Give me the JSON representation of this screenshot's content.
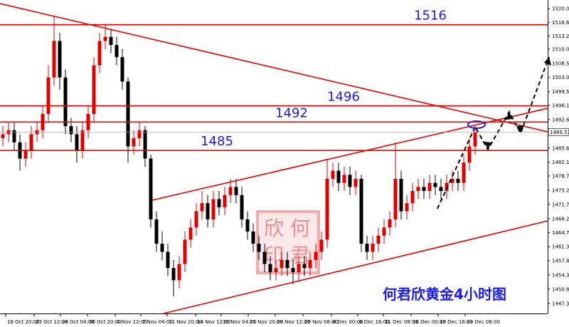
{
  "chart_data": {
    "type": "candlestick",
    "ylim": [
      1444.8,
      1522.1
    ],
    "yticks": [
      {
        "value": 1520,
        "label": "1520.00"
      },
      {
        "value": 1516.6,
        "label": "1516.60"
      },
      {
        "value": 1513.2,
        "label": "1513.20"
      },
      {
        "value": 1510,
        "label": "1510.00"
      },
      {
        "value": 1506.5,
        "label": "1506.50"
      },
      {
        "value": 1503,
        "label": "1503.00"
      },
      {
        "value": 1499.5,
        "label": "1499.50"
      },
      {
        "value": 1496.1,
        "label": "1496.10"
      },
      {
        "value": 1492.6,
        "label": "1492.60"
      },
      {
        "value": 1485.6,
        "label": "1485.60"
      },
      {
        "value": 1482.1,
        "label": "1482.10"
      },
      {
        "value": 1478.7,
        "label": "1478.70"
      },
      {
        "value": 1475.2,
        "label": "1475.20"
      },
      {
        "value": 1471.7,
        "label": "1471.70"
      },
      {
        "value": 1468.2,
        "label": "1468.20"
      },
      {
        "value": 1464.7,
        "label": "1464.70"
      },
      {
        "value": 1461.3,
        "label": "1461.30"
      },
      {
        "value": 1457.8,
        "label": "1457.80"
      },
      {
        "value": 1454.3,
        "label": "1454.30"
      },
      {
        "value": 1450.8,
        "label": "1450.80"
      },
      {
        "value": 1447.3,
        "label": "1447.30"
      }
    ],
    "xtick_labels": [
      "18 Oct 20:00",
      "23 Oct 12:00",
      "28 Oct 04:00",
      "30 Oct 20:00",
      "4 Nov 12:00",
      "7 Nov 04:00",
      "11 Nov 20:00",
      "14 Nov 12:00",
      "19 Nov 04:00",
      "21 Nov 20:00",
      "26 Nov 12:00",
      "29 Nov 08:00",
      "4 Dec 00:00",
      "6 Dec 16:00",
      "11 Dec 08:00",
      "16 Dec 00:00",
      "18 Dec 16:00",
      "23 Dec 08:00"
    ],
    "up_color": "#e00000",
    "down_color": "#000000",
    "open": [
      1488,
      1489,
      1490,
      1487,
      1483,
      1485,
      1489,
      1490,
      1494,
      1503,
      1512,
      1503,
      1491,
      1489,
      1485,
      1490,
      1494,
      1506,
      1512,
      1513,
      1511,
      1508,
      1502,
      1486,
      1488,
      1490,
      1483,
      1468,
      1462,
      1460,
      1456,
      1453,
      1457,
      1463,
      1466,
      1470,
      1472,
      1468,
      1473,
      1471,
      1474,
      1476,
      1474,
      1468,
      1465,
      1462,
      1460,
      1457,
      1455,
      1456,
      1458,
      1456,
      1455,
      1457,
      1456,
      1458,
      1460,
      1463,
      1478,
      1480,
      1477,
      1479,
      1476,
      1478,
      1462,
      1460,
      1462,
      1464,
      1466,
      1468,
      1478,
      1470,
      1472,
      1475,
      1476,
      1475,
      1477,
      1476,
      1475,
      1477,
      1478,
      1477,
      1482,
      1486
    ],
    "high": [
      1491,
      1492,
      1492,
      1489,
      1487,
      1491,
      1492,
      1496,
      1506,
      1518,
      1514,
      1505,
      1493,
      1491,
      1492,
      1496,
      1508,
      1514,
      1516,
      1515,
      1513,
      1510,
      1503,
      1490,
      1492,
      1491,
      1484,
      1470,
      1465,
      1462,
      1458,
      1459,
      1465,
      1468,
      1472,
      1475,
      1474,
      1475,
      1475,
      1476,
      1478,
      1478,
      1476,
      1470,
      1467,
      1464,
      1462,
      1459,
      1458,
      1460,
      1460,
      1458,
      1459,
      1459,
      1460,
      1462,
      1465,
      1483,
      1482,
      1482,
      1481,
      1481,
      1480,
      1479,
      1464,
      1464,
      1466,
      1468,
      1470,
      1487,
      1480,
      1474,
      1477,
      1478,
      1478,
      1479,
      1479,
      1478,
      1479,
      1480,
      1480,
      1484,
      1488,
      1491
    ],
    "low": [
      1486,
      1487,
      1485,
      1480,
      1481,
      1483,
      1487,
      1488,
      1492,
      1501,
      1500,
      1489,
      1487,
      1482,
      1483,
      1488,
      1492,
      1504,
      1510,
      1509,
      1506,
      1500,
      1482,
      1484,
      1486,
      1481,
      1466,
      1460,
      1458,
      1454,
      1449,
      1451,
      1455,
      1461,
      1464,
      1468,
      1466,
      1466,
      1469,
      1469,
      1472,
      1472,
      1466,
      1463,
      1460,
      1458,
      1455,
      1453,
      1453,
      1454,
      1454,
      1452,
      1453,
      1454,
      1454,
      1456,
      1458,
      1461,
      1476,
      1475,
      1475,
      1474,
      1474,
      1460,
      1458,
      1458,
      1460,
      1462,
      1464,
      1466,
      1468,
      1468,
      1470,
      1473,
      1473,
      1473,
      1474,
      1473,
      1473,
      1475,
      1475,
      1475,
      1480,
      1484
    ],
    "close": [
      1489,
      1490,
      1487,
      1483,
      1485,
      1489,
      1490,
      1494,
      1503,
      1512,
      1503,
      1491,
      1489,
      1485,
      1490,
      1494,
      1506,
      1512,
      1513,
      1511,
      1508,
      1502,
      1486,
      1488,
      1490,
      1483,
      1468,
      1462,
      1460,
      1456,
      1453,
      1457,
      1463,
      1466,
      1470,
      1472,
      1468,
      1473,
      1471,
      1474,
      1476,
      1474,
      1468,
      1465,
      1462,
      1460,
      1457,
      1455,
      1456,
      1458,
      1456,
      1455,
      1457,
      1456,
      1458,
      1460,
      1463,
      1478,
      1480,
      1477,
      1479,
      1476,
      1478,
      1462,
      1460,
      1462,
      1464,
      1466,
      1468,
      1478,
      1470,
      1472,
      1475,
      1476,
      1475,
      1477,
      1476,
      1475,
      1477,
      1478,
      1477,
      1482,
      1486,
      1489.53
    ],
    "current_price": 1489.53,
    "levels": [
      1516,
      1496,
      1492,
      1485
    ],
    "title": "何君欣黄金4小时图",
    "stamp": [
      "欣",
      "何",
      "印",
      "君"
    ]
  }
}
